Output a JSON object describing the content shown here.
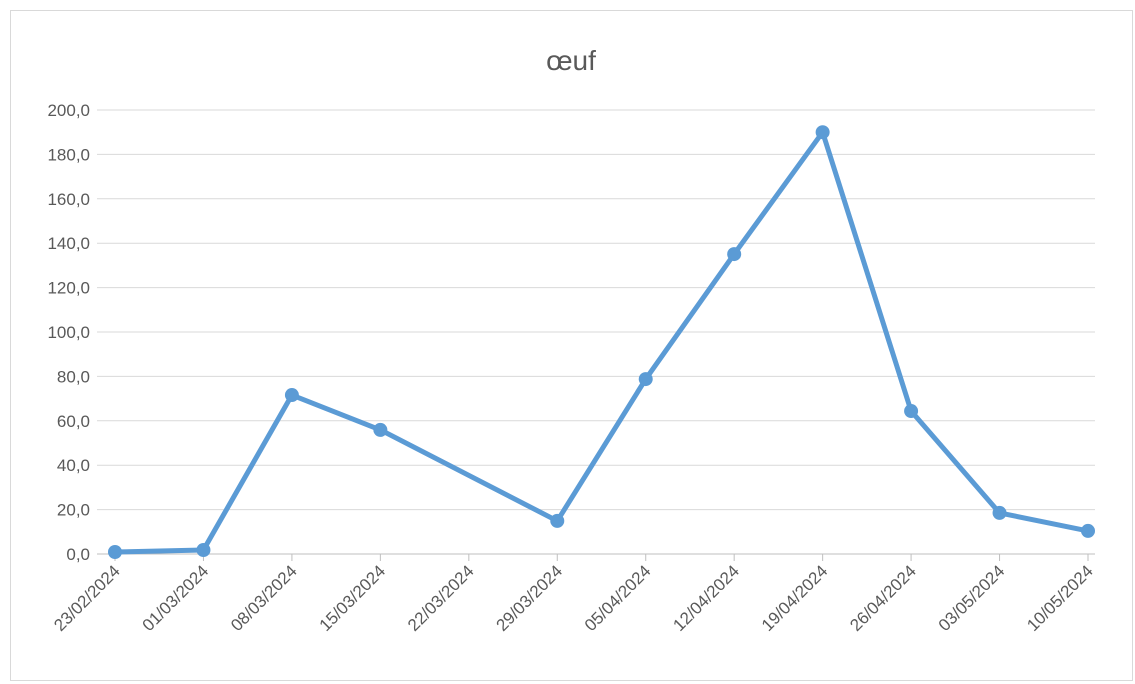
{
  "chart_data": {
    "type": "line",
    "title": "œuf",
    "x": [
      "23/02/2024",
      "01/03/2024",
      "08/03/2024",
      "15/03/2024",
      "29/03/2024",
      "05/04/2024",
      "12/04/2024",
      "19/04/2024",
      "26/04/2024",
      "03/05/2024",
      "10/05/2024"
    ],
    "series": [
      {
        "name": "œuf",
        "color": "#5b9bd5",
        "values": [
          0.9,
          1.8,
          71.6,
          55.9,
          14.9,
          78.8,
          135.1,
          190.0,
          64.4,
          18.5,
          10.4
        ]
      }
    ],
    "xlim": [
      "23/02/2024",
      "10/05/2024"
    ],
    "xticks": [
      "23/02/2024",
      "01/03/2024",
      "08/03/2024",
      "15/03/2024",
      "22/03/2024",
      "29/03/2024",
      "05/04/2024",
      "12/04/2024",
      "19/04/2024",
      "26/04/2024",
      "03/05/2024",
      "10/05/2024"
    ],
    "ylim": [
      0,
      200
    ],
    "yticks": [
      {
        "value": 0,
        "label": "0,0"
      },
      {
        "value": 20,
        "label": "20,0"
      },
      {
        "value": 40,
        "label": "40,0"
      },
      {
        "value": 60,
        "label": "60,0"
      },
      {
        "value": 80,
        "label": "80,0"
      },
      {
        "value": 100,
        "label": "100,0"
      },
      {
        "value": 120,
        "label": "120,0"
      },
      {
        "value": 140,
        "label": "140,0"
      },
      {
        "value": 160,
        "label": "160,0"
      },
      {
        "value": 180,
        "label": "180,0"
      },
      {
        "value": 200,
        "label": "200,0"
      }
    ],
    "grid": true
  }
}
